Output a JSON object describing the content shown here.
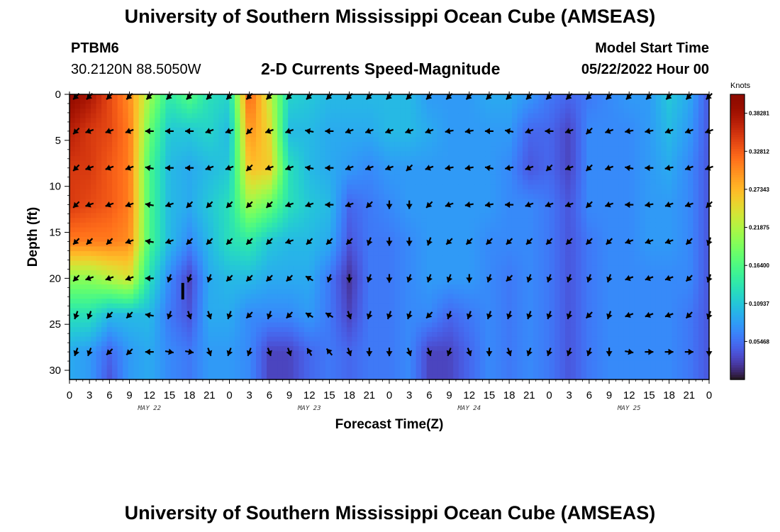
{
  "page": {
    "title": "University of Southern Mississippi Ocean Cube (AMSEAS)",
    "title_repeat": "University of Southern Mississippi Ocean Cube (AMSEAS)",
    "station": "PTBM6",
    "coords": "30.2120N  88.5050W",
    "subtitle": "2-D Currents Speed-Magnitude",
    "model_start_label": "Model Start Time",
    "model_start_value": "05/22/2022 Hour 00"
  },
  "chart_data": {
    "type": "heatmap",
    "title": "2-D Currents Speed-Magnitude",
    "xlabel": "Forecast Time(Z)",
    "ylabel": "Depth (ft)",
    "colorbar_label": "Knots",
    "x_unit": "forecast hour from model start",
    "xlim": [
      0,
      96
    ],
    "ylim": [
      0,
      31
    ],
    "y_inverted": true,
    "x_tick_labels": [
      "0",
      "3",
      "6",
      "9",
      "12",
      "15",
      "18",
      "21",
      "0",
      "3",
      "6",
      "9",
      "12",
      "15",
      "18",
      "21",
      "0",
      "3",
      "6",
      "9",
      "12",
      "15",
      "18",
      "21",
      "0",
      "3",
      "6",
      "9",
      "12",
      "15",
      "18",
      "21",
      "0"
    ],
    "y_ticks": [
      0,
      5,
      10,
      15,
      20,
      25,
      30
    ],
    "day_labels": [
      {
        "label": "MAY 22",
        "hour": 12
      },
      {
        "label": "MAY 23",
        "hour": 36
      },
      {
        "label": "MAY 24",
        "hour": 60
      },
      {
        "label": "MAY 25",
        "hour": 84
      }
    ],
    "colorbar": {
      "min": 0.0,
      "max": 0.41,
      "tick_values": [
        0.38281,
        0.32812,
        0.27343,
        0.21875,
        0.164,
        0.10937,
        0.05468
      ],
      "tick_labels": [
        "0.38281",
        "0.32812",
        "0.27343",
        "0.21875",
        "0.16400",
        "0.10937",
        "0.05468"
      ],
      "colormap": "turbo"
    },
    "depth_levels": [
      0,
      4,
      8,
      12,
      16,
      20,
      24,
      28,
      31
    ],
    "time_hours": [
      0,
      3,
      6,
      9,
      12,
      15,
      18,
      21,
      24,
      27,
      30,
      33,
      36,
      39,
      42,
      45,
      48,
      51,
      54,
      57,
      60,
      63,
      66,
      69,
      72,
      75,
      78,
      81,
      84,
      87,
      90,
      93,
      96
    ],
    "speed_knots": [
      [
        0.4,
        0.38,
        0.34,
        0.3,
        0.21,
        0.14,
        0.17,
        0.13,
        0.12,
        0.33,
        0.23,
        0.12,
        0.11,
        0.1,
        0.1,
        0.1,
        0.1,
        0.1,
        0.08,
        0.08,
        0.08,
        0.09,
        0.09,
        0.08,
        0.06,
        0.05,
        0.06,
        0.07,
        0.08,
        0.08,
        0.11,
        0.09,
        0.04
      ],
      [
        0.37,
        0.35,
        0.34,
        0.31,
        0.18,
        0.11,
        0.11,
        0.12,
        0.1,
        0.3,
        0.25,
        0.1,
        0.1,
        0.09,
        0.09,
        0.09,
        0.1,
        0.1,
        0.09,
        0.08,
        0.08,
        0.08,
        0.08,
        0.05,
        0.05,
        0.03,
        0.07,
        0.07,
        0.07,
        0.08,
        0.1,
        0.08,
        0.04
      ],
      [
        0.35,
        0.35,
        0.33,
        0.31,
        0.16,
        0.1,
        0.09,
        0.1,
        0.11,
        0.27,
        0.26,
        0.13,
        0.1,
        0.09,
        0.08,
        0.07,
        0.08,
        0.08,
        0.08,
        0.08,
        0.08,
        0.08,
        0.07,
        0.04,
        0.05,
        0.03,
        0.07,
        0.07,
        0.07,
        0.08,
        0.09,
        0.07,
        0.04
      ],
      [
        0.35,
        0.34,
        0.33,
        0.31,
        0.16,
        0.1,
        0.09,
        0.11,
        0.13,
        0.21,
        0.18,
        0.13,
        0.11,
        0.1,
        0.05,
        0.06,
        0.07,
        0.08,
        0.08,
        0.08,
        0.08,
        0.08,
        0.07,
        0.07,
        0.06,
        0.04,
        0.07,
        0.07,
        0.07,
        0.08,
        0.08,
        0.07,
        0.04
      ],
      [
        0.31,
        0.31,
        0.31,
        0.3,
        0.16,
        0.1,
        0.07,
        0.1,
        0.13,
        0.14,
        0.11,
        0.1,
        0.1,
        0.09,
        0.04,
        0.06,
        0.06,
        0.07,
        0.08,
        0.08,
        0.08,
        0.07,
        0.07,
        0.07,
        0.06,
        0.04,
        0.06,
        0.07,
        0.07,
        0.08,
        0.08,
        0.07,
        0.04
      ],
      [
        0.2,
        0.2,
        0.22,
        0.24,
        0.13,
        0.07,
        0.03,
        0.09,
        0.1,
        0.1,
        0.09,
        0.09,
        0.09,
        0.06,
        0.02,
        0.06,
        0.06,
        0.07,
        0.08,
        0.08,
        0.08,
        0.07,
        0.06,
        0.07,
        0.06,
        0.04,
        0.06,
        0.07,
        0.07,
        0.07,
        0.07,
        0.07,
        0.04
      ],
      [
        0.13,
        0.13,
        0.1,
        0.1,
        0.1,
        0.06,
        0.04,
        0.09,
        0.09,
        0.07,
        0.07,
        0.07,
        0.08,
        0.06,
        0.03,
        0.06,
        0.06,
        0.07,
        0.07,
        0.05,
        0.06,
        0.07,
        0.06,
        0.07,
        0.06,
        0.04,
        0.06,
        0.07,
        0.07,
        0.07,
        0.07,
        0.06,
        0.04
      ],
      [
        0.09,
        0.08,
        0.05,
        0.08,
        0.09,
        0.07,
        0.06,
        0.08,
        0.08,
        0.07,
        0.03,
        0.03,
        0.05,
        0.06,
        0.05,
        0.06,
        0.06,
        0.07,
        0.03,
        0.03,
        0.05,
        0.07,
        0.06,
        0.07,
        0.06,
        0.04,
        0.06,
        0.07,
        0.07,
        0.07,
        0.07,
        0.06,
        0.04
      ],
      [
        0.09,
        0.08,
        0.04,
        0.08,
        0.09,
        0.07,
        0.06,
        0.08,
        0.08,
        0.07,
        0.03,
        0.03,
        0.05,
        0.06,
        0.05,
        0.06,
        0.06,
        0.07,
        0.03,
        0.03,
        0.05,
        0.07,
        0.06,
        0.07,
        0.06,
        0.04,
        0.06,
        0.07,
        0.07,
        0.07,
        0.07,
        0.06,
        0.04
      ]
    ],
    "vector_depths": [
      0,
      4,
      8,
      12,
      16,
      20,
      24,
      28
    ],
    "vector_hours": [
      1,
      3,
      6,
      9,
      12,
      15,
      18,
      21,
      24,
      27,
      30,
      33,
      36,
      39,
      42,
      45,
      48,
      51,
      54,
      57,
      60,
      63,
      66,
      69,
      72,
      75,
      78,
      81,
      84,
      87,
      90,
      93,
      96
    ],
    "vector_dir_deg": [
      [
        225,
        225,
        225,
        225,
        225,
        225,
        225,
        225,
        225,
        225,
        225,
        225,
        225,
        225,
        225,
        225,
        225,
        225,
        225,
        225,
        225,
        225,
        225,
        225,
        225,
        225,
        225,
        225,
        225,
        225,
        225,
        225,
        225
      ],
      [
        225,
        200,
        200,
        200,
        180,
        180,
        180,
        200,
        200,
        225,
        200,
        200,
        170,
        180,
        200,
        200,
        200,
        200,
        200,
        190,
        190,
        180,
        170,
        200,
        180,
        200,
        225,
        200,
        190,
        190,
        200,
        200,
        200
      ],
      [
        225,
        200,
        200,
        200,
        170,
        180,
        180,
        200,
        200,
        225,
        200,
        200,
        170,
        180,
        200,
        200,
        200,
        225,
        200,
        190,
        190,
        170,
        190,
        200,
        225,
        200,
        225,
        200,
        170,
        180,
        190,
        200,
        200
      ],
      [
        225,
        200,
        200,
        200,
        170,
        200,
        225,
        225,
        225,
        225,
        225,
        200,
        200,
        180,
        200,
        225,
        270,
        270,
        225,
        200,
        190,
        190,
        180,
        200,
        200,
        200,
        225,
        200,
        180,
        190,
        200,
        200,
        225
      ],
      [
        225,
        225,
        225,
        200,
        170,
        200,
        225,
        225,
        225,
        225,
        225,
        200,
        225,
        225,
        225,
        250,
        270,
        270,
        250,
        225,
        225,
        225,
        225,
        225,
        225,
        225,
        225,
        225,
        200,
        200,
        200,
        225,
        250
      ],
      [
        225,
        200,
        200,
        200,
        180,
        250,
        250,
        250,
        225,
        225,
        225,
        225,
        150,
        250,
        270,
        250,
        270,
        250,
        250,
        250,
        270,
        250,
        225,
        250,
        250,
        250,
        250,
        250,
        200,
        200,
        200,
        225,
        250
      ],
      [
        250,
        250,
        225,
        225,
        170,
        250,
        290,
        290,
        250,
        225,
        250,
        225,
        150,
        150,
        290,
        250,
        250,
        250,
        225,
        250,
        250,
        250,
        250,
        250,
        250,
        250,
        225,
        250,
        200,
        200,
        200,
        225,
        250
      ],
      [
        250,
        250,
        225,
        225,
        180,
        350,
        350,
        290,
        250,
        250,
        290,
        290,
        120,
        130,
        290,
        270,
        270,
        290,
        290,
        250,
        290,
        270,
        290,
        250,
        250,
        250,
        250,
        270,
        350,
        0,
        0,
        0,
        270
      ]
    ],
    "marker": {
      "hour": 17,
      "depth_from": 20.5,
      "depth_to": 22.3
    }
  }
}
